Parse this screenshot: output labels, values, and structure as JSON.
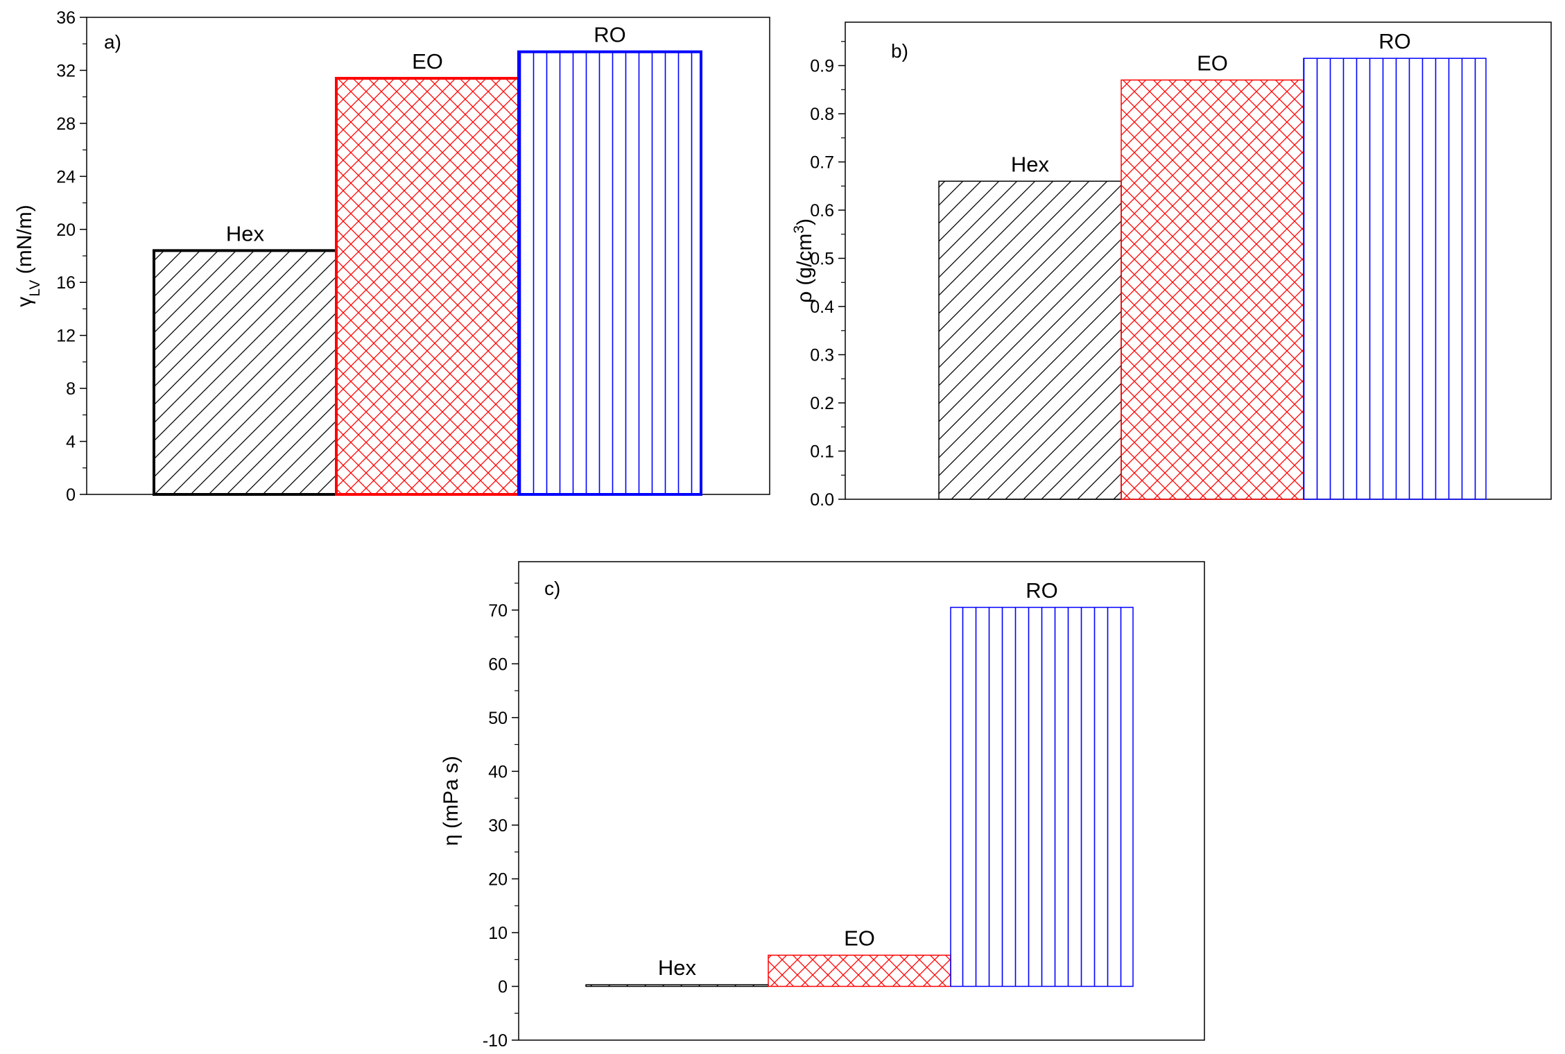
{
  "chart_data": [
    {
      "id": "a",
      "type": "bar",
      "panel_label": "a)",
      "categories": [
        "Hex",
        "EO",
        "RO"
      ],
      "values": [
        18.4,
        31.4,
        33.4
      ],
      "ylabel_symbol": "γ",
      "ylabel_sub": "LV",
      "ylabel_unit": " (mN/m)",
      "ylim": [
        0,
        36
      ],
      "yticks": [
        0,
        4,
        8,
        12,
        16,
        20,
        24,
        28,
        32,
        36
      ],
      "tick_format": "int",
      "grid": false,
      "bold_outline": true
    },
    {
      "id": "b",
      "type": "bar",
      "panel_label": "b)",
      "categories": [
        "Hex",
        "EO",
        "RO"
      ],
      "values": [
        0.66,
        0.87,
        0.915
      ],
      "ylabel_symbol": "ρ",
      "ylabel_unit": " (g/cm",
      "ylabel_sup": "3",
      "ylabel_close": ")",
      "ylim": [
        0,
        0.99
      ],
      "yticks": [
        0.0,
        0.1,
        0.2,
        0.3,
        0.4,
        0.5,
        0.6,
        0.7,
        0.8,
        0.9
      ],
      "tick_format": "1dp",
      "grid": false,
      "bold_outline": false
    },
    {
      "id": "c",
      "type": "bar",
      "panel_label": "c)",
      "categories": [
        "Hex",
        "EO",
        "RO"
      ],
      "values": [
        0.3,
        5.8,
        70.5
      ],
      "ylabel_symbol": "η",
      "ylabel_unit": " (mPa s)",
      "ylim": [
        -10,
        79
      ],
      "yticks": [
        -10,
        0,
        10,
        20,
        30,
        40,
        50,
        60,
        70
      ],
      "tick_format": "int",
      "grid": false,
      "bold_outline": false
    }
  ],
  "series_style": {
    "Hex": {
      "color": "#000000",
      "pattern": "diagonal"
    },
    "EO": {
      "color": "#ff0000",
      "pattern": "crosshatch"
    },
    "RO": {
      "color": "#0000ff",
      "pattern": "vertical"
    }
  }
}
